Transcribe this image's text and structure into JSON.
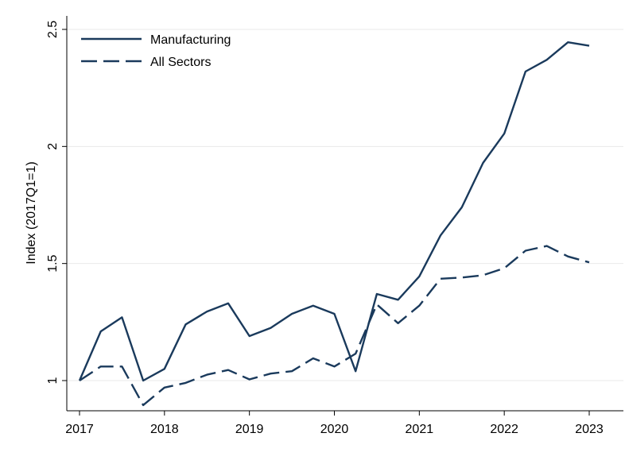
{
  "chart_data": {
    "type": "line",
    "title": "",
    "xlabel": "",
    "ylabel": "Index (2017Q1=1)",
    "xlim": [
      2017,
      2023
    ],
    "ylim": [
      1,
      2.5
    ],
    "x_ticks": [
      "2017",
      "2018",
      "2019",
      "2020",
      "2021",
      "2022",
      "2023"
    ],
    "y_ticks": [
      "1",
      "1.5",
      "2",
      "2.5"
    ],
    "grid": true,
    "legend": "top-left",
    "x": [
      2017.0,
      2017.25,
      2017.5,
      2017.75,
      2018.0,
      2018.25,
      2018.5,
      2018.75,
      2019.0,
      2019.25,
      2019.5,
      2019.75,
      2020.0,
      2020.25,
      2020.5,
      2020.75,
      2021.0,
      2021.25,
      2021.5,
      2021.75,
      2022.0,
      2022.25,
      2022.5,
      2022.75,
      2023.0
    ],
    "series": [
      {
        "name": "Manufacturing",
        "style": "solid",
        "color": "#1a3a5c",
        "values": [
          1.0,
          1.21,
          1.27,
          1.0,
          1.05,
          1.24,
          1.295,
          1.33,
          1.19,
          1.225,
          1.285,
          1.32,
          1.285,
          1.04,
          1.37,
          1.345,
          1.445,
          1.62,
          1.74,
          1.93,
          2.055,
          2.32,
          2.37,
          2.445,
          2.43
        ]
      },
      {
        "name": "All Sectors",
        "style": "dashed",
        "color": "#1a3a5c",
        "values": [
          1.0,
          1.06,
          1.06,
          0.895,
          0.97,
          0.99,
          1.025,
          1.045,
          1.005,
          1.03,
          1.04,
          1.095,
          1.06,
          1.115,
          1.325,
          1.245,
          1.32,
          1.435,
          1.44,
          1.45,
          1.48,
          1.555,
          1.575,
          1.53,
          1.505
        ]
      }
    ]
  }
}
